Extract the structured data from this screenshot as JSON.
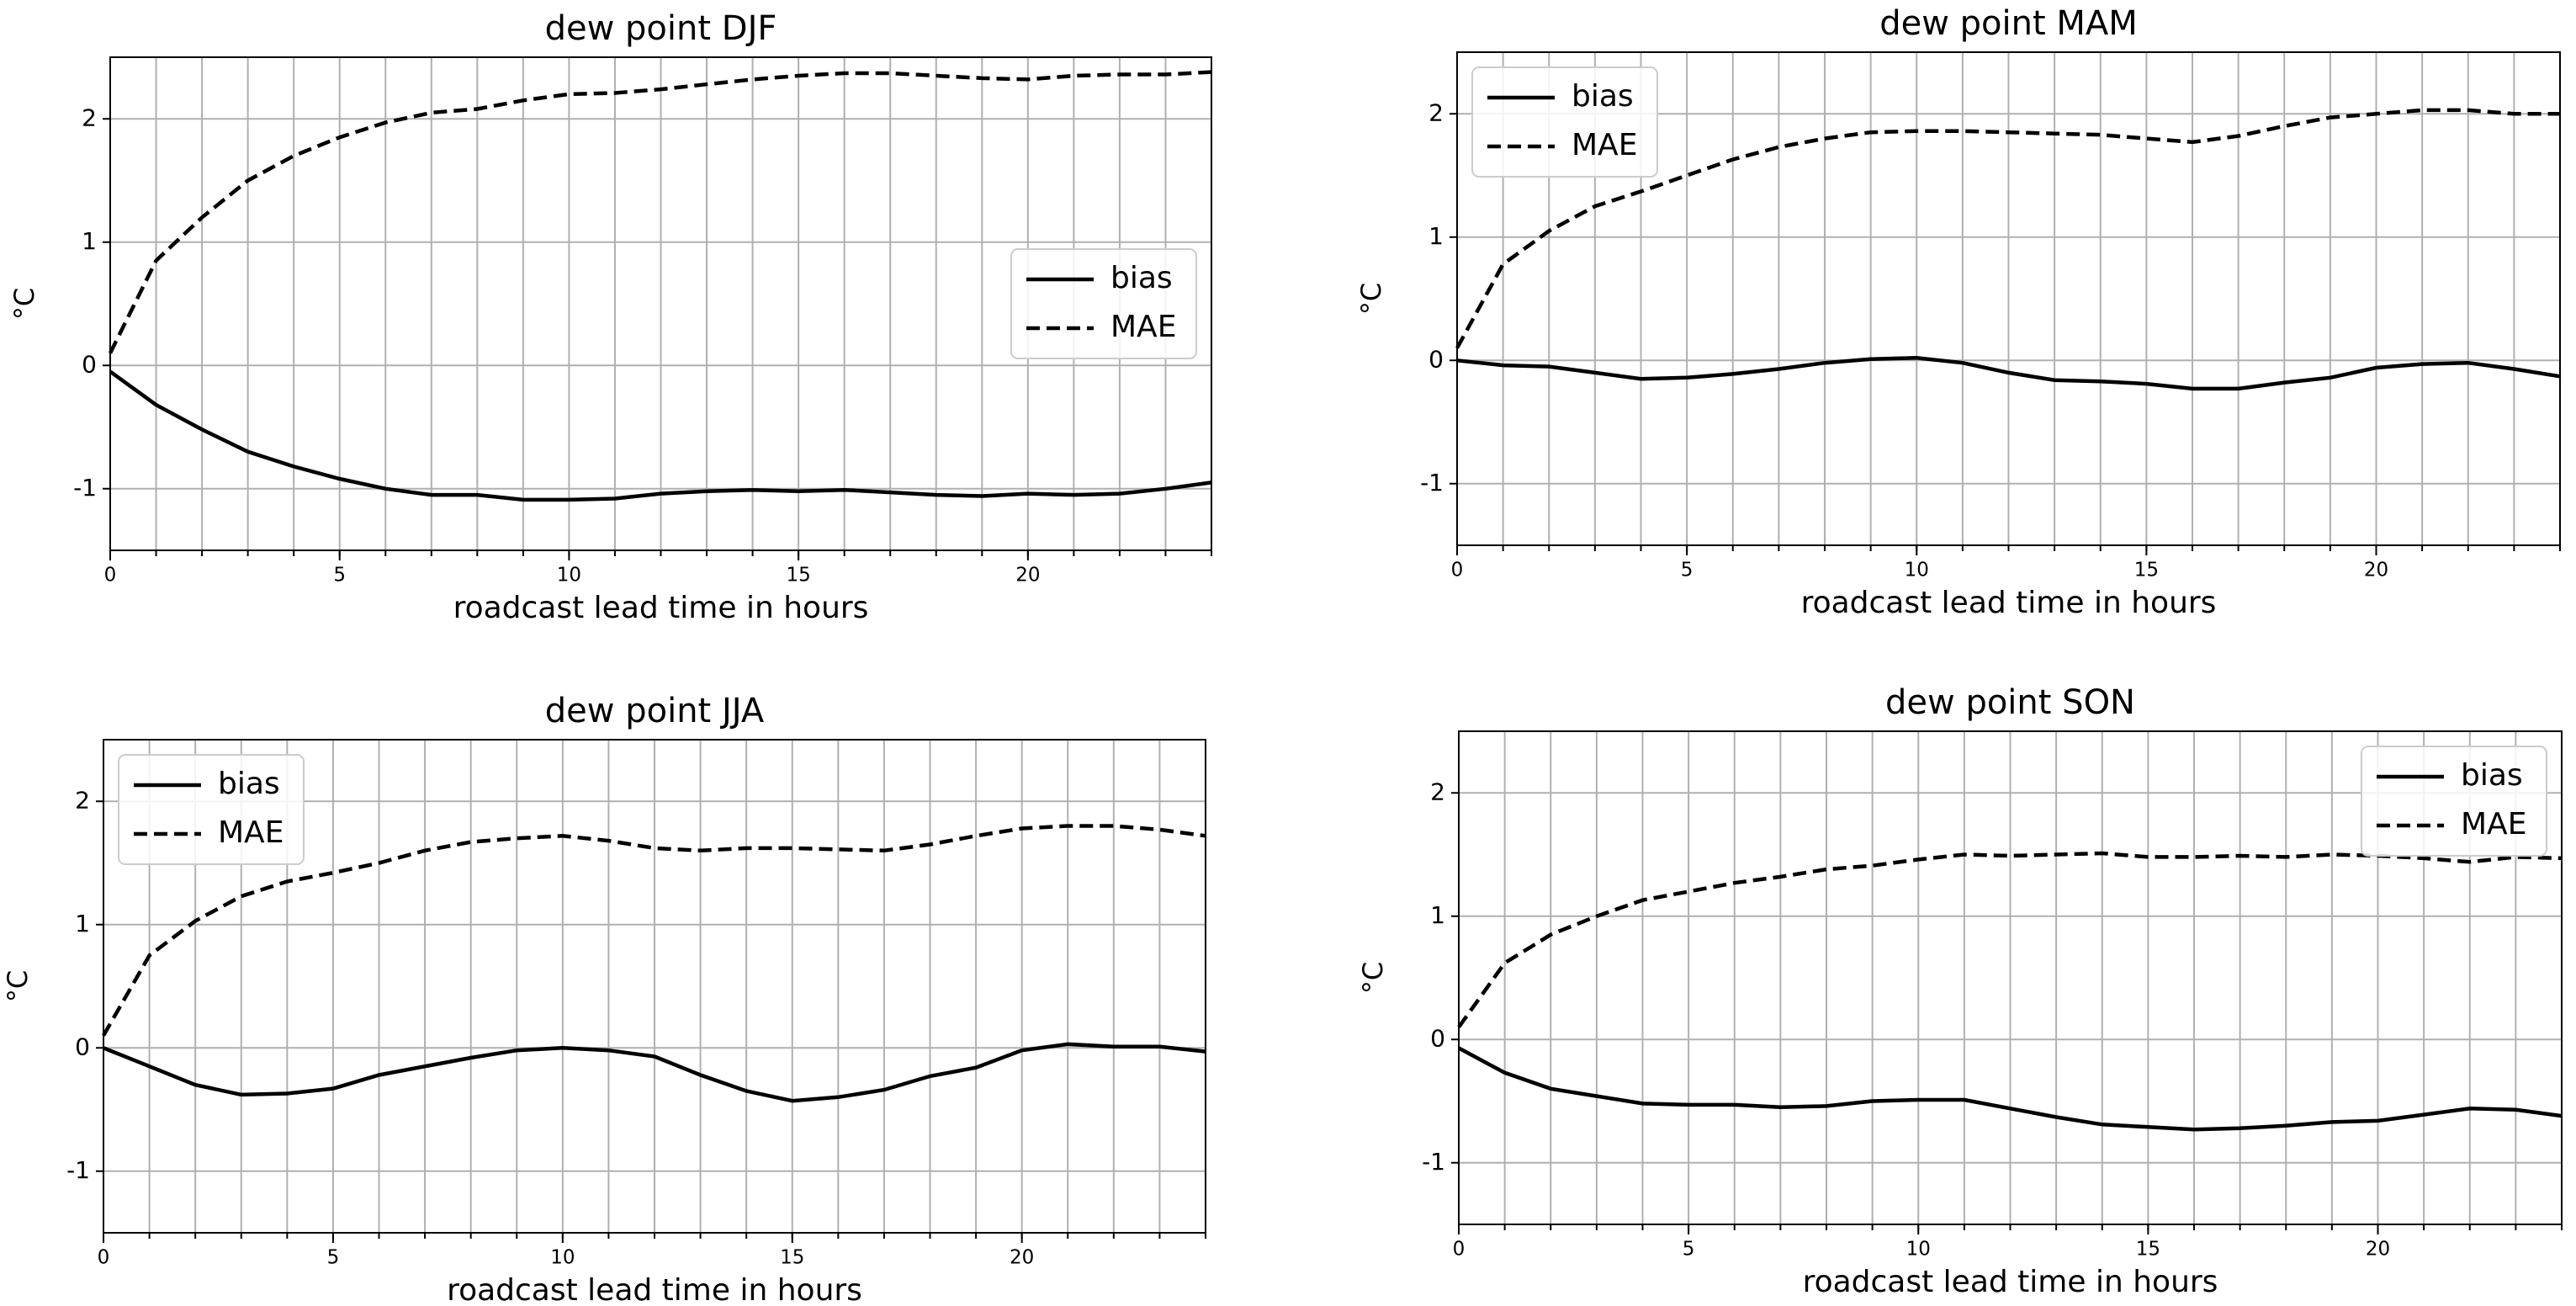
{
  "chart_data": [
    {
      "type": "line",
      "title": "dew point DJF",
      "xlabel": "roadcast lead time in hours",
      "ylabel": "°C",
      "x": [
        0,
        1,
        2,
        3,
        4,
        5,
        6,
        7,
        8,
        9,
        10,
        11,
        12,
        13,
        14,
        15,
        16,
        17,
        18,
        19,
        20,
        21,
        22,
        23,
        24
      ],
      "xlim": [
        0,
        24
      ],
      "xticks": [
        0,
        5,
        10,
        15,
        20
      ],
      "xminorticks": [
        0,
        1,
        2,
        3,
        4,
        5,
        6,
        7,
        8,
        9,
        10,
        11,
        12,
        13,
        14,
        15,
        16,
        17,
        18,
        19,
        20,
        21,
        22,
        23,
        24
      ],
      "ylim": [
        -1.5,
        2.5
      ],
      "yticks": [
        -1,
        0,
        1,
        2
      ],
      "grid": true,
      "legend": "center right",
      "series": [
        {
          "name": "bias",
          "color": "#000000",
          "linestyle": "solid",
          "values": [
            -0.05,
            -0.32,
            -0.52,
            -0.7,
            -0.82,
            -0.92,
            -1.0,
            -1.05,
            -1.05,
            -1.09,
            -1.09,
            -1.08,
            -1.04,
            -1.02,
            -1.01,
            -1.02,
            -1.01,
            -1.03,
            -1.05,
            -1.06,
            -1.04,
            -1.05,
            -1.04,
            -1.0,
            -0.95
          ]
        },
        {
          "name": "MAE",
          "color": "#000000",
          "linestyle": "dashed",
          "values": [
            0.1,
            0.85,
            1.2,
            1.5,
            1.7,
            1.85,
            1.97,
            2.05,
            2.08,
            2.15,
            2.2,
            2.21,
            2.24,
            2.28,
            2.32,
            2.35,
            2.37,
            2.37,
            2.35,
            2.33,
            2.32,
            2.35,
            2.36,
            2.36,
            2.38
          ]
        }
      ]
    },
    {
      "type": "line",
      "title": "dew point MAM",
      "xlabel": "roadcast lead time in hours",
      "ylabel": "°C",
      "x": [
        0,
        1,
        2,
        3,
        4,
        5,
        6,
        7,
        8,
        9,
        10,
        11,
        12,
        13,
        14,
        15,
        16,
        17,
        18,
        19,
        20,
        21,
        22,
        23,
        24
      ],
      "xlim": [
        0,
        24
      ],
      "xticks": [
        0,
        5,
        10,
        15,
        20
      ],
      "xminorticks": [
        0,
        1,
        2,
        3,
        4,
        5,
        6,
        7,
        8,
        9,
        10,
        11,
        12,
        13,
        14,
        15,
        16,
        17,
        18,
        19,
        20,
        21,
        22,
        23,
        24
      ],
      "ylim": [
        -1.5,
        2.5
      ],
      "yticks": [
        -1,
        0,
        1,
        2
      ],
      "grid": true,
      "legend": "upper left",
      "series": [
        {
          "name": "bias",
          "color": "#000000",
          "linestyle": "solid",
          "values": [
            0.0,
            -0.04,
            -0.05,
            -0.1,
            -0.15,
            -0.14,
            -0.11,
            -0.07,
            -0.02,
            0.01,
            0.02,
            -0.02,
            -0.1,
            -0.16,
            -0.17,
            -0.19,
            -0.23,
            -0.23,
            -0.18,
            -0.14,
            -0.06,
            -0.03,
            -0.02,
            -0.07,
            -0.13
          ]
        },
        {
          "name": "MAE",
          "color": "#000000",
          "linestyle": "dashed",
          "values": [
            0.1,
            0.78,
            1.05,
            1.25,
            1.37,
            1.5,
            1.63,
            1.73,
            1.8,
            1.85,
            1.86,
            1.86,
            1.85,
            1.84,
            1.83,
            1.8,
            1.77,
            1.82,
            1.9,
            1.97,
            2.0,
            2.03,
            2.03,
            2.0,
            2.0
          ]
        }
      ]
    },
    {
      "type": "line",
      "title": "dew point JJA",
      "xlabel": "roadcast lead time in hours",
      "ylabel": "°C",
      "x": [
        0,
        1,
        2,
        3,
        4,
        5,
        6,
        7,
        8,
        9,
        10,
        11,
        12,
        13,
        14,
        15,
        16,
        17,
        18,
        19,
        20,
        21,
        22,
        23,
        24
      ],
      "xlim": [
        0,
        24
      ],
      "xticks": [
        0,
        5,
        10,
        15,
        20
      ],
      "xminorticks": [
        0,
        1,
        2,
        3,
        4,
        5,
        6,
        7,
        8,
        9,
        10,
        11,
        12,
        13,
        14,
        15,
        16,
        17,
        18,
        19,
        20,
        21,
        22,
        23,
        24
      ],
      "ylim": [
        -1.5,
        2.5
      ],
      "yticks": [
        -1,
        0,
        1,
        2
      ],
      "grid": true,
      "legend": "upper left",
      "series": [
        {
          "name": "bias",
          "color": "#000000",
          "linestyle": "solid",
          "values": [
            0.0,
            -0.15,
            -0.3,
            -0.38,
            -0.37,
            -0.33,
            -0.22,
            -0.15,
            -0.08,
            -0.02,
            0.0,
            -0.02,
            -0.07,
            -0.22,
            -0.35,
            -0.43,
            -0.4,
            -0.34,
            -0.23,
            -0.16,
            -0.02,
            0.03,
            0.01,
            0.01,
            -0.03
          ]
        },
        {
          "name": "MAE",
          "color": "#000000",
          "linestyle": "dashed",
          "values": [
            0.1,
            0.75,
            1.03,
            1.23,
            1.35,
            1.42,
            1.5,
            1.6,
            1.67,
            1.7,
            1.72,
            1.68,
            1.62,
            1.6,
            1.62,
            1.62,
            1.61,
            1.6,
            1.65,
            1.72,
            1.78,
            1.8,
            1.8,
            1.77,
            1.72
          ]
        }
      ]
    },
    {
      "type": "line",
      "title": "dew point SON",
      "xlabel": "roadcast lead time in hours",
      "ylabel": "°C",
      "x": [
        0,
        1,
        2,
        3,
        4,
        5,
        6,
        7,
        8,
        9,
        10,
        11,
        12,
        13,
        14,
        15,
        16,
        17,
        18,
        19,
        20,
        21,
        22,
        23,
        24
      ],
      "xlim": [
        0,
        24
      ],
      "xticks": [
        0,
        5,
        10,
        15,
        20
      ],
      "xminorticks": [
        0,
        1,
        2,
        3,
        4,
        5,
        6,
        7,
        8,
        9,
        10,
        11,
        12,
        13,
        14,
        15,
        16,
        17,
        18,
        19,
        20,
        21,
        22,
        23,
        24
      ],
      "ylim": [
        -1.5,
        2.5
      ],
      "yticks": [
        -1,
        0,
        1,
        2
      ],
      "grid": true,
      "legend": "upper right",
      "series": [
        {
          "name": "bias",
          "color": "#000000",
          "linestyle": "solid",
          "values": [
            -0.07,
            -0.27,
            -0.4,
            -0.46,
            -0.52,
            -0.53,
            -0.53,
            -0.55,
            -0.54,
            -0.5,
            -0.49,
            -0.49,
            -0.56,
            -0.63,
            -0.69,
            -0.71,
            -0.73,
            -0.72,
            -0.7,
            -0.67,
            -0.66,
            -0.61,
            -0.56,
            -0.57,
            -0.62
          ]
        },
        {
          "name": "MAE",
          "color": "#000000",
          "linestyle": "dashed",
          "values": [
            0.1,
            0.62,
            0.85,
            1.0,
            1.13,
            1.2,
            1.27,
            1.32,
            1.38,
            1.41,
            1.46,
            1.5,
            1.49,
            1.5,
            1.51,
            1.48,
            1.48,
            1.49,
            1.48,
            1.5,
            1.49,
            1.47,
            1.44,
            1.48,
            1.47
          ]
        }
      ]
    }
  ]
}
